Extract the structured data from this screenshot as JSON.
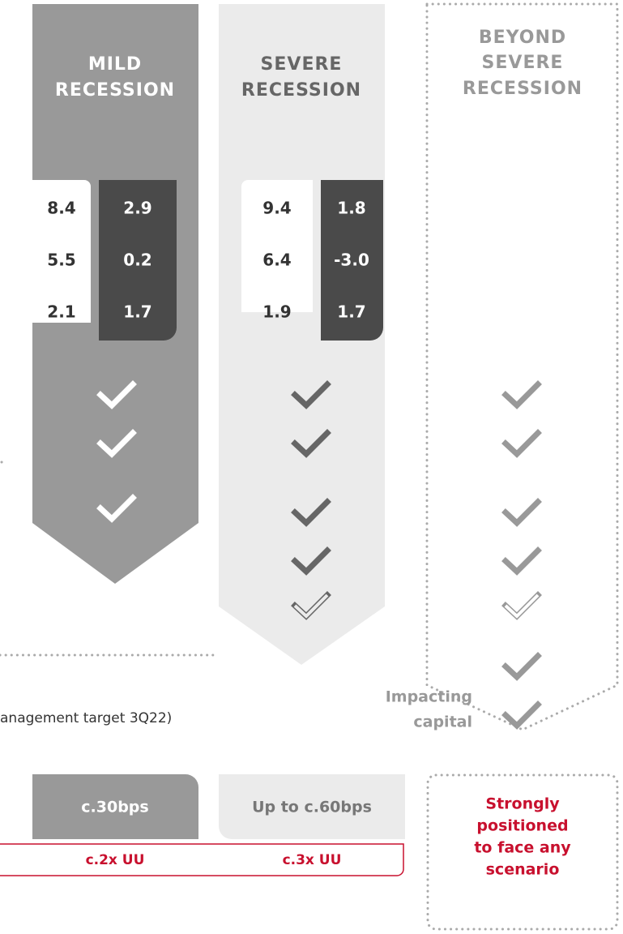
{
  "columns": [
    {
      "title": [
        "MILD",
        "RECESSION"
      ],
      "values_left": [
        "8.4",
        "5.5",
        "2.1"
      ],
      "values_right": [
        "2.9",
        "0.2",
        "1.7"
      ]
    },
    {
      "title": [
        "SEVERE",
        "RECESSION"
      ],
      "values_left": [
        "9.4",
        "6.4",
        "1.9"
      ],
      "values_right": [
        "1.8",
        "-3.0",
        "1.7"
      ]
    },
    {
      "title": [
        "BEYOND",
        "SEVERE",
        "RECESSION"
      ]
    }
  ],
  "side_label": [
    "Impacting",
    "capital"
  ],
  "footnote": "anagement target 3Q22)",
  "costs": [
    "c.30bps",
    "Up to c.60bps"
  ],
  "multiples": [
    "c.2x UU",
    "c.3x UU"
  ],
  "beyond_note": [
    "Strongly",
    "positioned",
    "to face any",
    "scenario"
  ]
}
